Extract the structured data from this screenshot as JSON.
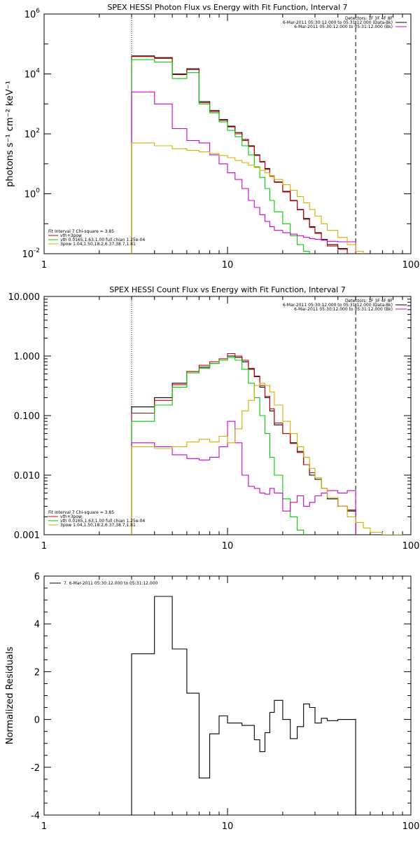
{
  "chart_data": [
    {
      "type": "line",
      "step": true,
      "title": "SPEX HESSI Photon Flux vs Energy with Fit Function, Interval 7",
      "xlabel": "",
      "ylabel": "photons s⁻¹ cm⁻² keV⁻¹",
      "xscale": "log",
      "yscale": "log",
      "xlim": [
        1,
        100
      ],
      "ylim": [
        0.01,
        1000000
      ],
      "xticks": [
        1,
        10,
        100
      ],
      "xticklabels": [
        "1",
        "10",
        "100"
      ],
      "yticks": [
        0.01,
        1,
        100,
        10000,
        1000000
      ],
      "yticklabels": [
        "10",
        "10",
        "10",
        "10",
        "10"
      ],
      "ytickexp": [
        "-2",
        "0",
        "2",
        "4",
        "6"
      ],
      "vlines": [
        {
          "x": 3,
          "style": "dotted"
        },
        {
          "x": 50,
          "style": "dashed"
        }
      ],
      "legend_top": [
        "Detectors: 1F 3F 4F 8F",
        "6-Mar-2011 05:30:12.000 to 05:31:12.000 (Data-Bk)",
        "6-Mar-2011 05:30:12.000 to 05:31:12.000 (Bk)"
      ],
      "legend_top_colors": [
        "#ffffff",
        "#000000",
        "#d000d0"
      ],
      "legend_bottom": [
        "Fit Interval 7   Chi-square = 3.85",
        "vth+3pow",
        "vth 0.0165,1.63,1.00  full chian 1.25e-04",
        "3pow 1.04,1.50,18.2,6.37,38.7,1.81"
      ],
      "legend_bottom_colors": [
        "#ffffff",
        "#d00000",
        "#00cc00",
        "#d4b000"
      ],
      "series": [
        {
          "color": "#000000",
          "edges": [
            3,
            4,
            5,
            6,
            7,
            8,
            9,
            10,
            11,
            12,
            13,
            14,
            15,
            16,
            17,
            18,
            20,
            22,
            24,
            26,
            28,
            30,
            32.5,
            35,
            40,
            45,
            50
          ],
          "values": [
            40000,
            35000,
            10000,
            15000,
            1200,
            600,
            300,
            180,
            110,
            65,
            40,
            20,
            12,
            7,
            4,
            2.5,
            1.2,
            0.6,
            0.3,
            0.15,
            0.08,
            0.05,
            0.03,
            0.02,
            0.015,
            0.01
          ]
        },
        {
          "color": "#d00000",
          "edges": [
            3,
            4,
            5,
            6,
            7,
            8,
            9,
            10,
            11,
            12,
            13,
            14,
            15,
            16,
            17,
            18,
            20,
            22,
            24,
            26,
            28,
            30,
            32.5,
            35,
            40,
            45,
            50
          ],
          "values": [
            38000,
            33000,
            9500,
            14000,
            1100,
            550,
            280,
            170,
            100,
            60,
            38,
            19,
            11.5,
            6.5,
            3.8,
            2.4,
            1.15,
            0.58,
            0.29,
            0.14,
            0.075,
            0.048,
            0.028,
            0.018,
            0.014,
            0.009
          ]
        },
        {
          "color": "#00cc00",
          "edges": [
            3,
            4,
            5,
            6,
            7,
            8,
            9,
            10,
            11,
            12,
            13,
            14,
            15,
            16,
            17,
            18,
            20,
            22,
            24,
            26,
            28
          ],
          "values": [
            30000,
            25000,
            7000,
            11000,
            1000,
            500,
            250,
            130,
            80,
            40,
            20,
            8,
            3.5,
            1.5,
            0.6,
            0.25,
            0.1,
            0.04,
            0.02,
            0.012
          ]
        },
        {
          "color": "#d000d0",
          "edges": [
            3,
            4,
            5,
            6,
            7,
            8,
            9,
            10,
            11,
            12,
            13,
            14,
            15,
            16,
            17,
            18,
            20,
            22,
            24,
            26,
            28,
            30,
            32.5,
            35,
            40,
            45,
            50
          ],
          "values": [
            2500,
            1000,
            150,
            60,
            50,
            20,
            10,
            5,
            3,
            1.5,
            0.6,
            0.35,
            0.2,
            0.12,
            0.08,
            0.06,
            0.05,
            0.045,
            0.04,
            0.035,
            0.032,
            0.03,
            0.028,
            0.026,
            0.025,
            0.025
          ]
        },
        {
          "color": "#d4b000",
          "edges": [
            3,
            4,
            5,
            6,
            7,
            8,
            9,
            10,
            11,
            12,
            13,
            14,
            15,
            16,
            17,
            18,
            20,
            22,
            24,
            26,
            28,
            30,
            32.5,
            35,
            40,
            45,
            50,
            55
          ],
          "values": [
            50,
            40,
            32,
            28,
            25,
            22,
            19,
            16,
            13,
            11,
            9,
            7.5,
            6,
            5,
            4,
            3,
            2,
            1.3,
            0.8,
            0.5,
            0.3,
            0.18,
            0.1,
            0.06,
            0.035,
            0.02,
            0.012
          ]
        }
      ]
    },
    {
      "type": "line",
      "step": true,
      "title": "SPEX HESSI Count Flux vs Energy with Fit Function, Interval 7",
      "xlabel": "",
      "ylabel": "",
      "xscale": "log",
      "yscale": "log",
      "xlim": [
        1,
        100
      ],
      "ylim": [
        0.001,
        10
      ],
      "xticks": [
        1,
        10,
        100
      ],
      "xticklabels": [
        "1",
        "10",
        "100"
      ],
      "yticks": [
        0.001,
        0.01,
        0.1,
        1,
        10
      ],
      "yticklabels": [
        "0.001",
        "0.010",
        "0.100",
        "1.000",
        "10.000"
      ],
      "vlines": [
        {
          "x": 3,
          "style": "dotted"
        },
        {
          "x": 50,
          "style": "dashed"
        }
      ],
      "legend_top": [
        "Detectors: 1F 3F 4F 8F",
        "6-Mar-2011 05:30:12.000 to 05:31:12.000 (Data-Bk)",
        "6-Mar-2011 05:30:12.000 to 05:31:12.000 (Bk)"
      ],
      "legend_top_colors": [
        "#ffffff",
        "#000000",
        "#d000d0"
      ],
      "legend_bottom": [
        "Fit Interval 7   Chi-square = 3.85",
        "vth+3pow",
        "vth 0.0165,1.63,1.00  full chian 1.25e-04",
        "3pow 1.04,1.50,18.2,6.37,38.7,1.81"
      ],
      "legend_bottom_colors": [
        "#ffffff",
        "#d00000",
        "#00cc00",
        "#d4b000"
      ],
      "series": [
        {
          "color": "#000000",
          "edges": [
            3,
            4,
            5,
            6,
            7,
            8,
            9,
            10,
            11,
            12,
            13,
            14,
            15,
            16,
            17,
            18,
            20,
            22,
            24,
            26,
            28,
            30,
            32.5,
            35,
            40,
            45,
            50
          ],
          "values": [
            0.14,
            0.2,
            0.35,
            0.55,
            0.65,
            0.75,
            0.85,
            1.0,
            0.95,
            0.8,
            0.6,
            0.45,
            0.3,
            0.2,
            0.12,
            0.07,
            0.05,
            0.035,
            0.025,
            0.015,
            0.01,
            0.0085,
            0.006,
            0.004,
            0.003,
            0.0025
          ]
        },
        {
          "color": "#d00000",
          "edges": [
            3,
            4,
            5,
            6,
            7,
            8,
            9,
            10,
            11,
            12,
            13,
            14,
            15,
            16,
            17,
            18,
            20,
            22,
            24,
            26,
            28,
            30,
            32.5,
            35,
            40,
            45,
            50
          ],
          "values": [
            0.11,
            0.18,
            0.33,
            0.55,
            0.7,
            0.8,
            0.9,
            1.1,
            1.0,
            0.85,
            0.62,
            0.46,
            0.32,
            0.21,
            0.13,
            0.075,
            0.05,
            0.034,
            0.024,
            0.015,
            0.011,
            0.009,
            0.006,
            0.0042,
            0.003,
            0.0026
          ]
        },
        {
          "color": "#00cc00",
          "edges": [
            3,
            4,
            5,
            6,
            7,
            8,
            9,
            10,
            11,
            12,
            13,
            14,
            15,
            16,
            17,
            18,
            20,
            22,
            24,
            26,
            28
          ],
          "values": [
            0.08,
            0.15,
            0.3,
            0.52,
            0.62,
            0.75,
            0.85,
            0.95,
            0.85,
            0.6,
            0.35,
            0.2,
            0.1,
            0.05,
            0.02,
            0.01,
            0.004,
            0.002,
            0.0012,
            0.0008
          ]
        },
        {
          "color": "#d000d0",
          "edges": [
            3,
            4,
            5,
            6,
            7,
            8,
            9,
            10,
            11,
            12,
            13,
            14,
            15,
            16,
            17,
            18,
            20,
            22,
            24,
            26,
            28,
            30,
            32.5,
            35,
            40,
            45,
            50
          ],
          "values": [
            0.035,
            0.03,
            0.022,
            0.019,
            0.018,
            0.02,
            0.03,
            0.08,
            0.035,
            0.01,
            0.0065,
            0.006,
            0.005,
            0.0048,
            0.006,
            0.005,
            0.0025,
            0.0035,
            0.0045,
            0.003,
            0.0035,
            0.0045,
            0.005,
            0.0055,
            0.005,
            0.0055
          ]
        },
        {
          "color": "#d4b000",
          "edges": [
            3,
            4,
            5,
            6,
            7,
            8,
            9,
            10,
            11,
            12,
            13,
            14,
            15,
            16,
            17,
            18,
            20,
            22,
            24,
            26,
            28,
            30,
            32.5,
            35,
            40,
            45,
            50,
            55,
            60,
            70,
            80,
            90
          ],
          "values": [
            0.03,
            0.028,
            0.03,
            0.036,
            0.04,
            0.036,
            0.045,
            0.035,
            0.06,
            0.12,
            0.18,
            0.32,
            0.35,
            0.32,
            0.25,
            0.15,
            0.08,
            0.05,
            0.03,
            0.02,
            0.013,
            0.009,
            0.006,
            0.0042,
            0.003,
            0.002,
            0.0016,
            0.0013,
            0.0011,
            0.001,
            0.001
          ]
        }
      ]
    },
    {
      "type": "line",
      "step": true,
      "title": "",
      "xlabel": "",
      "ylabel": "Normalized Residuals",
      "xscale": "log",
      "yscale": "linear",
      "xlim": [
        1,
        100
      ],
      "ylim": [
        -4,
        6
      ],
      "xticks": [
        1,
        10,
        100
      ],
      "xticklabels": [
        "1",
        "10",
        "100"
      ],
      "yticks": [
        -4,
        -2,
        0,
        2,
        4,
        6
      ],
      "yticklabels": [
        "-4",
        "-2",
        "0",
        "2",
        "4",
        "6"
      ],
      "legend_top": [
        "7.  6-Mar-2011 05:30:12.000 to 05:31:12.000"
      ],
      "legend_top_colors": [
        "#000000"
      ],
      "series": [
        {
          "color": "#000000",
          "edges": [
            3,
            4,
            5,
            6,
            7,
            8,
            9,
            10,
            11,
            12,
            13,
            14,
            15,
            16,
            17,
            18,
            20,
            22,
            24,
            26,
            28,
            30,
            32.5,
            35,
            40,
            45,
            50
          ],
          "values": [
            2.75,
            5.15,
            2.95,
            1.1,
            -2.45,
            -0.6,
            0.15,
            -0.15,
            -0.15,
            -0.25,
            -0.25,
            -0.85,
            -1.35,
            -0.55,
            0.3,
            0.8,
            0.0,
            -0.8,
            -0.3,
            0.65,
            0.5,
            -0.15,
            0.05,
            -0.05,
            0.0,
            0.0
          ]
        }
      ]
    }
  ]
}
